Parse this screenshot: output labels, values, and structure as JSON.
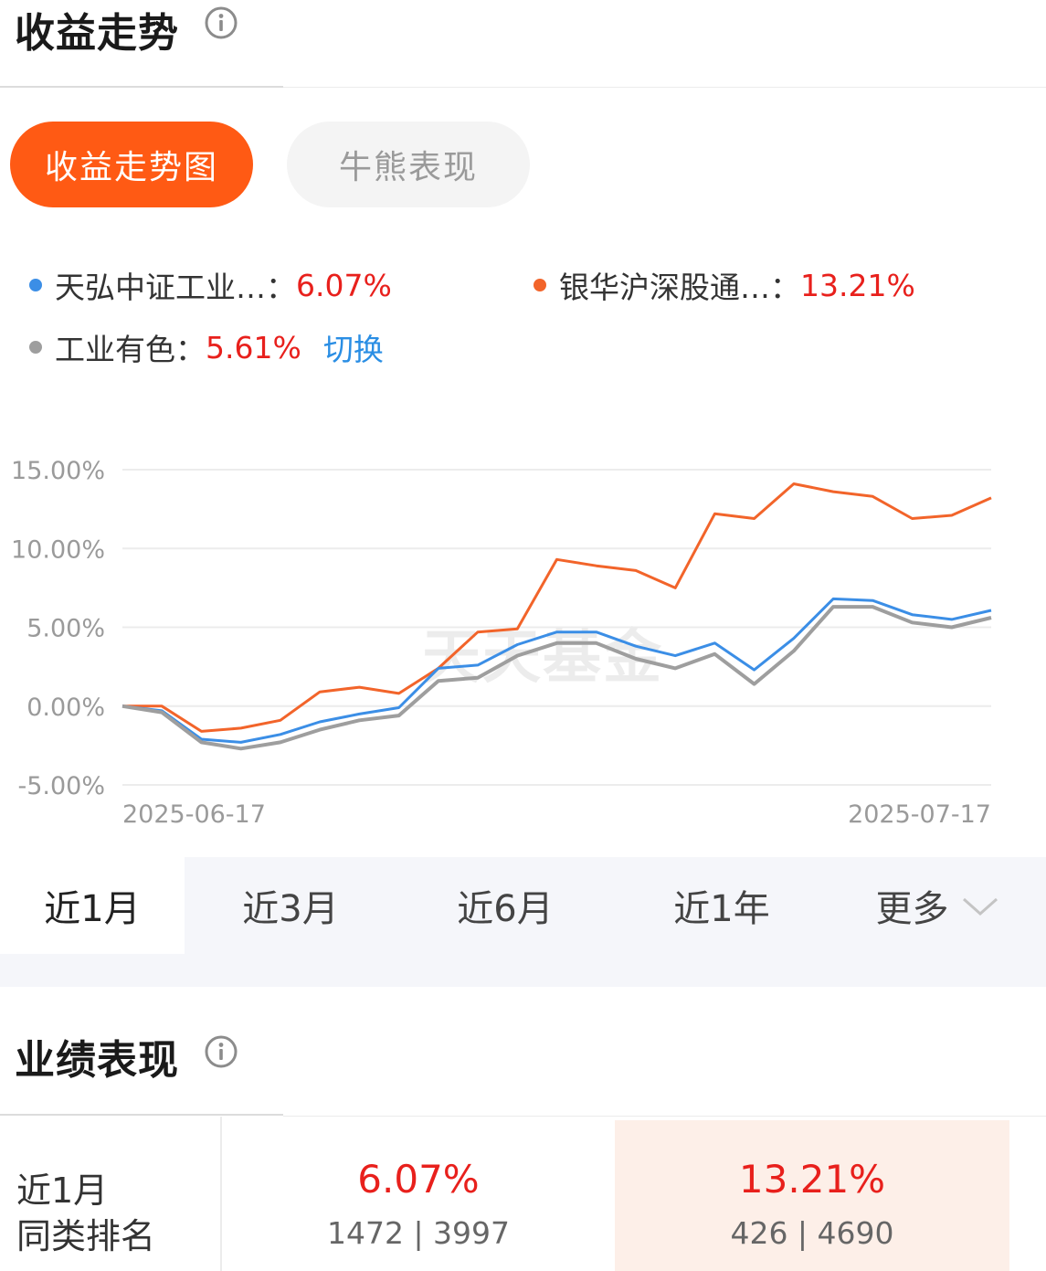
{
  "returns_section": {
    "title": "收益走势"
  },
  "tabs": [
    {
      "label": "收益走势图"
    },
    {
      "label": "牛熊表现"
    }
  ],
  "legend": {
    "series": [
      {
        "name": "天弘中证工业…",
        "value": "6.07%",
        "color": "#3b8ee6"
      },
      {
        "name": "银华沪深股通…",
        "value": "13.21%",
        "color": "#f2642a"
      },
      {
        "name": "工业有色",
        "value": "5.61%",
        "color": "#9e9e9e"
      }
    ],
    "switch_label": "切换"
  },
  "watermark": "天天基金",
  "chart_data": {
    "type": "line",
    "x_labels": [
      "2025-06-17",
      "2025-07-17"
    ],
    "yticks": [
      "15.00%",
      "10.00%",
      "5.00%",
      "0.00%",
      "-5.00%"
    ],
    "ylim": [
      -5,
      15
    ],
    "series": [
      {
        "name": "银华沪深股通…",
        "color": "#f2642a",
        "values": [
          0,
          0,
          -1.6,
          -1.4,
          -0.9,
          0.9,
          1.2,
          0.8,
          2.4,
          4.7,
          4.9,
          9.3,
          8.9,
          8.6,
          7.5,
          12.2,
          11.9,
          14.1,
          13.6,
          13.3,
          11.9,
          12.1,
          13.21
        ]
      },
      {
        "name": "天弘中证工业…",
        "color": "#3b8ee6",
        "values": [
          0,
          -0.3,
          -2.1,
          -2.3,
          -1.8,
          -1.0,
          -0.5,
          -0.1,
          2.4,
          2.6,
          3.9,
          4.7,
          4.7,
          3.8,
          3.2,
          4.0,
          2.3,
          4.3,
          6.8,
          6.7,
          5.8,
          5.5,
          6.07
        ]
      },
      {
        "name": "工业有色",
        "color": "#9e9e9e",
        "values": [
          0,
          -0.4,
          -2.3,
          -2.7,
          -2.3,
          -1.5,
          -0.9,
          -0.6,
          1.6,
          1.8,
          3.2,
          4.0,
          4.0,
          3.0,
          2.4,
          3.3,
          1.4,
          3.5,
          6.3,
          6.3,
          5.3,
          5.0,
          5.61
        ]
      }
    ]
  },
  "range_tabs": [
    {
      "label": "近1月"
    },
    {
      "label": "近3月"
    },
    {
      "label": "近6月"
    },
    {
      "label": "近1年"
    },
    {
      "label": "更多"
    }
  ],
  "performance_section": {
    "title": "业绩表现",
    "row_label_line1": "近1月",
    "row_label_line2": "同类排名",
    "fund_a": {
      "value": "6.07%",
      "rank": "1472 | 3997"
    },
    "fund_b": {
      "value": "13.21%",
      "rank": "426 | 4690"
    }
  }
}
